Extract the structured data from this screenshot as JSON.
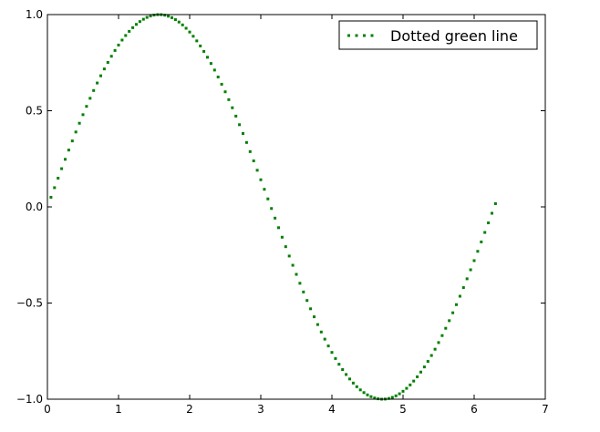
{
  "chart_data": {
    "type": "line",
    "title": "",
    "xlabel": "",
    "ylabel": "",
    "xlim": [
      0,
      7
    ],
    "ylim": [
      -1.0,
      1.0
    ],
    "xticks": [
      0,
      1,
      2,
      3,
      4,
      5,
      6,
      7
    ],
    "xtick_labels": [
      "0",
      "1",
      "2",
      "3",
      "4",
      "5",
      "6",
      "7"
    ],
    "yticks": [
      1.0,
      0.5,
      0.0,
      -0.5,
      -1.0
    ],
    "ytick_labels": [
      "1.0",
      "0.5",
      "0.0",
      "−0.5",
      "−1.0"
    ],
    "grid": false,
    "legend_position": "top-right",
    "series": [
      {
        "name": "Dotted green line",
        "color": "#008000",
        "linestyle": "dotted",
        "function": "sin",
        "x_start": 0.05,
        "x_end": 6.28,
        "x_step": 0.05,
        "x": [
          0.05,
          0.5,
          1.0,
          1.57,
          2.0,
          2.5,
          3.0,
          3.5,
          4.0,
          4.71,
          5.0,
          5.5,
          6.0,
          6.28
        ],
        "y": [
          0.05,
          0.48,
          0.84,
          1.0,
          0.91,
          0.6,
          0.14,
          -0.35,
          -0.76,
          -1.0,
          -0.96,
          -0.71,
          -0.28,
          -0.0
        ]
      }
    ]
  }
}
